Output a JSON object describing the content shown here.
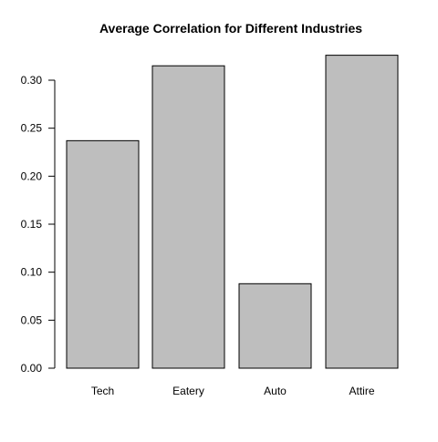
{
  "chart_data": {
    "type": "bar",
    "title": "Average Correlation for Different Industries",
    "xlabel": "",
    "ylabel": "",
    "categories": [
      "Tech",
      "Eatery",
      "Auto",
      "Attire"
    ],
    "values": [
      0.237,
      0.315,
      0.088,
      0.326
    ],
    "ylim": [
      0,
      0.33
    ],
    "yticks": [
      0.0,
      0.05,
      0.1,
      0.15,
      0.2,
      0.25,
      0.3
    ],
    "ytick_labels": [
      "0.00",
      "0.05",
      "0.10",
      "0.15",
      "0.20",
      "0.25",
      "0.30"
    ],
    "bar_color": "#bebebe",
    "grid": false,
    "legend": "none"
  }
}
